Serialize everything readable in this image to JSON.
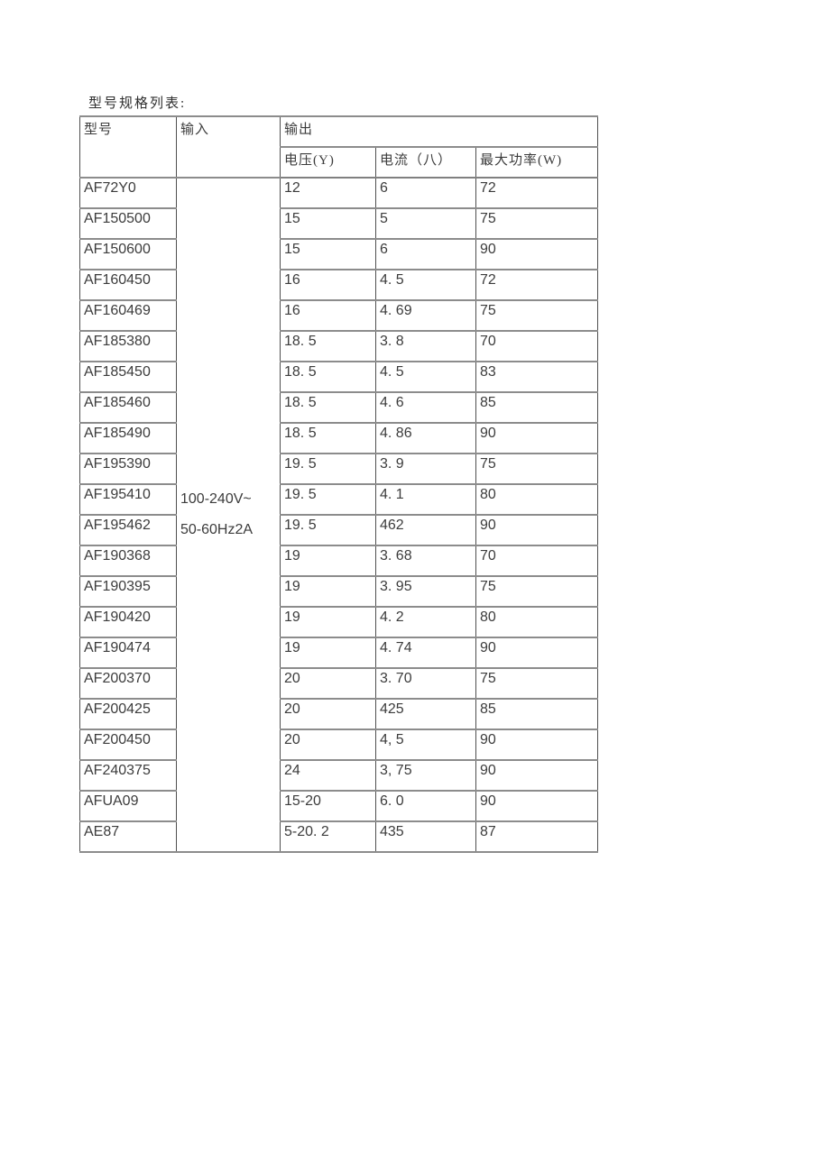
{
  "document": {
    "title": "型号规格列表:"
  },
  "table": {
    "header": {
      "model": "型号",
      "input": "输入",
      "output": "输出",
      "voltage": "电压(Y)",
      "current": "电流（八）",
      "power": "最大功率(W)"
    },
    "input_cell": {
      "line1": "100-240V~",
      "line2": "50-60Hz2A"
    },
    "rows": [
      {
        "model": "AF72Y0",
        "voltage": "12",
        "current": "6",
        "power": "72"
      },
      {
        "model": "AF150500",
        "voltage": "15",
        "current": "5",
        "power": "75",
        "bold": [
          "voltage"
        ]
      },
      {
        "model": "AF150600",
        "voltage": "15",
        "current": "6",
        "power": "90"
      },
      {
        "model": "AF160450",
        "voltage": "16",
        "current": "4. 5",
        "power": "72"
      },
      {
        "model": "AF160469",
        "voltage": "16",
        "current": "4. 69",
        "power": "75"
      },
      {
        "model": "AF185380",
        "voltage": "18. 5",
        "current": "3. 8",
        "power": "70"
      },
      {
        "model": "AF185450",
        "voltage": "18. 5",
        "current": "4. 5",
        "power": "83"
      },
      {
        "model": "AF185460",
        "voltage": "18. 5",
        "current": "4. 6",
        "power": "85"
      },
      {
        "model": "AF185490",
        "voltage": "18. 5",
        "current": "4. 86",
        "power": "90"
      },
      {
        "model": "AF195390",
        "voltage": "19. 5",
        "current": "3. 9",
        "power": "75"
      },
      {
        "model": "AF195410",
        "voltage": "19. 5",
        "current": "4. 1",
        "power": "80"
      },
      {
        "model": "AF195462",
        "voltage": "19. 5",
        "current": "462",
        "power": "90"
      },
      {
        "model": "AF190368",
        "voltage": "19",
        "current": "3. 68",
        "power": "70",
        "bold": [
          "current"
        ]
      },
      {
        "model": "AF190395",
        "voltage": "19",
        "current": "3. 95",
        "power": "75",
        "bold": [
          "voltage"
        ]
      },
      {
        "model": "AF190420",
        "voltage": "19",
        "current": "4. 2",
        "power": "80"
      },
      {
        "model": "AF190474",
        "voltage": "19",
        "current": "4. 74",
        "power": "90"
      },
      {
        "model": "AF200370",
        "voltage": "20",
        "current": "3. 70",
        "power": "75"
      },
      {
        "model": "AF200425",
        "voltage": "20",
        "current": "425",
        "power": "85"
      },
      {
        "model": "AF200450",
        "voltage": "20",
        "current": "4, 5",
        "power": "90",
        "bold": [
          "voltage",
          "current"
        ]
      },
      {
        "model": "AF240375",
        "voltage": "24",
        "current": "3, 75",
        "power": "90",
        "bold": [
          "voltage"
        ]
      },
      {
        "model": "AFUA09",
        "voltage": "15-20",
        "current": "6. 0",
        "power": "90"
      },
      {
        "model": "AE87",
        "voltage": "5-20. 2",
        "current": "435",
        "power": "87"
      }
    ]
  }
}
